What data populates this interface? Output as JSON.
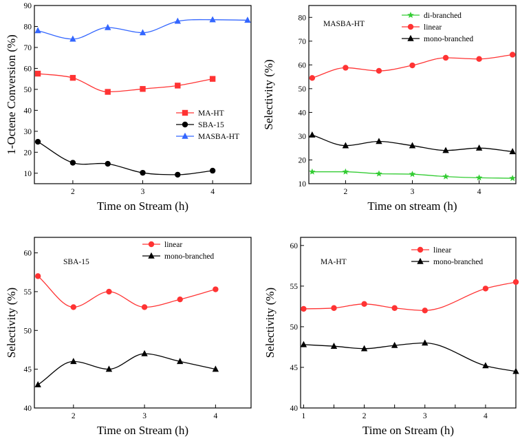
{
  "chart_data": [
    {
      "type": "scatter",
      "title": "",
      "xlabel": "Time on Stream (h)",
      "ylabel": "1-Octene Conversion (%)",
      "xlim": [
        1.45,
        4.55
      ],
      "ylim": [
        5,
        90
      ],
      "xticks": [
        2,
        3,
        4
      ],
      "xtick_labels": [
        "2",
        "3",
        "4"
      ],
      "yticks": [
        10,
        20,
        30,
        40,
        50,
        60,
        70,
        80,
        90
      ],
      "ytick_labels": [
        "10",
        "20",
        "30",
        "40",
        "50",
        "60",
        "70",
        "80",
        "90"
      ],
      "legend_position": "center-right",
      "series": [
        {
          "name": "MA-HT",
          "color": "#ff3333",
          "marker": "square",
          "x": [
            1.5,
            2,
            2.5,
            3,
            3.5,
            4
          ],
          "values": [
            57.5,
            55.5,
            48.8,
            50.2,
            51.8,
            55.0
          ]
        },
        {
          "name": "SBA-15",
          "color": "#000000",
          "marker": "circle",
          "x": [
            1.5,
            2,
            2.5,
            3,
            3.5,
            4
          ],
          "values": [
            25.0,
            15.0,
            14.5,
            10.2,
            9.3,
            11.2
          ]
        },
        {
          "name": "MASBA-HT",
          "color": "#3366ff",
          "marker": "triangle",
          "x": [
            1.5,
            2,
            2.5,
            3,
            3.5,
            4,
            4.5
          ],
          "values": [
            78.0,
            74.0,
            79.5,
            77.0,
            82.5,
            83.2,
            83.0
          ]
        }
      ]
    },
    {
      "type": "scatter",
      "title": "MASBA-HT",
      "xlabel": "Time on stream (h)",
      "ylabel": "Selectivity (%)",
      "xlim": [
        1.45,
        4.55
      ],
      "ylim": [
        10,
        85
      ],
      "xticks": [
        2,
        3,
        4
      ],
      "xtick_labels": [
        "2",
        "3",
        "4"
      ],
      "yticks": [
        10,
        20,
        30,
        40,
        50,
        60,
        70,
        80
      ],
      "ytick_labels": [
        "10",
        "20",
        "30",
        "40",
        "50",
        "60",
        "70",
        "80"
      ],
      "legend_position": "top-right",
      "series": [
        {
          "name": "di-branched",
          "color": "#33cc33",
          "marker": "star",
          "x": [
            1.5,
            2,
            2.5,
            3,
            3.5,
            4,
            4.5
          ],
          "values": [
            15.0,
            15.0,
            14.2,
            14.0,
            13.0,
            12.5,
            12.3
          ]
        },
        {
          "name": "linear",
          "color": "#ff3333",
          "marker": "circle",
          "x": [
            1.5,
            2,
            2.5,
            3,
            3.5,
            4,
            4.5
          ],
          "values": [
            54.5,
            58.8,
            57.5,
            59.8,
            63.0,
            62.5,
            64.3
          ]
        },
        {
          "name": "mono-branched",
          "color": "#000000",
          "marker": "triangle",
          "x": [
            1.5,
            2,
            2.5,
            3,
            3.5,
            4,
            4.5
          ],
          "values": [
            30.5,
            26.0,
            27.8,
            26.0,
            24.0,
            25.0,
            23.5
          ]
        }
      ]
    },
    {
      "type": "scatter",
      "title": "SBA-15",
      "xlabel": "Time on Stream (h)",
      "ylabel": "Selectivity (%)",
      "xlim": [
        1.45,
        4.5
      ],
      "ylim": [
        40,
        62
      ],
      "xticks": [
        2,
        3,
        4
      ],
      "xtick_labels": [
        "2",
        "3",
        "4"
      ],
      "yticks": [
        40,
        45,
        50,
        55,
        60
      ],
      "ytick_labels": [
        "40",
        "45",
        "50",
        "55",
        "60"
      ],
      "legend_position": "top-center",
      "series": [
        {
          "name": "linear",
          "color": "#ff3333",
          "marker": "circle",
          "x": [
            1.5,
            2,
            2.5,
            3,
            3.5,
            4
          ],
          "values": [
            57.0,
            53.0,
            55.0,
            53.0,
            54.0,
            55.3
          ]
        },
        {
          "name": "mono-branched",
          "color": "#000000",
          "marker": "triangle",
          "x": [
            1.5,
            2,
            2.5,
            3,
            3.5,
            4
          ],
          "values": [
            43.0,
            46.0,
            45.0,
            47.0,
            46.0,
            45.0
          ]
        }
      ]
    },
    {
      "type": "scatter",
      "title": "MA-HT",
      "xlabel": "Time on Stream (h)",
      "ylabel": "Selectivity (%)",
      "xlim": [
        0.95,
        4.5
      ],
      "ylim": [
        40,
        61
      ],
      "xticks": [
        1,
        1.5,
        2,
        2.5,
        3,
        3.5,
        4
      ],
      "xtick_labels": [
        "1",
        "",
        "2",
        "",
        "3",
        "",
        "4"
      ],
      "yticks": [
        40,
        45,
        50,
        55,
        60
      ],
      "ytick_labels": [
        "40",
        "45",
        "50",
        "55",
        "60"
      ],
      "legend_position": "top-center",
      "series": [
        {
          "name": "linear",
          "color": "#ff3333",
          "marker": "circle",
          "x": [
            1,
            1.5,
            2,
            2.5,
            3,
            4,
            4.5
          ],
          "values": [
            52.2,
            52.3,
            52.8,
            52.3,
            52.0,
            54.7,
            55.5
          ]
        },
        {
          "name": "mono-branched",
          "color": "#000000",
          "marker": "triangle",
          "x": [
            1,
            1.5,
            2,
            2.5,
            3,
            4,
            4.5
          ],
          "values": [
            47.8,
            47.6,
            47.3,
            47.7,
            48.0,
            45.2,
            44.5
          ]
        }
      ]
    }
  ]
}
